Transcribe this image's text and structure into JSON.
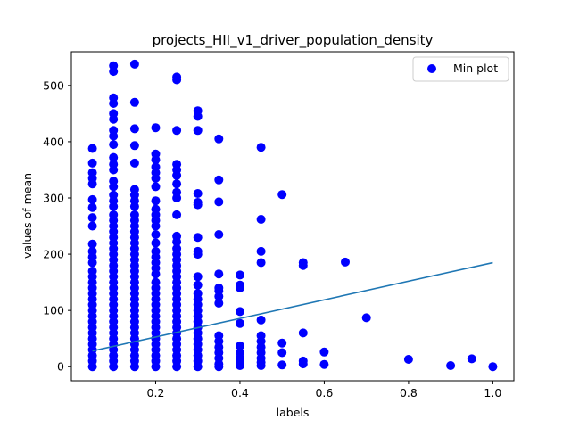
{
  "chart_data": {
    "type": "scatter",
    "title": "projects_HII_v1_driver_population_density",
    "xlabel": "labels",
    "ylabel": "values of mean",
    "xlim": [
      0.0,
      1.05
    ],
    "ylim": [
      -25,
      560
    ],
    "xticks": [
      "0.2",
      "0.4",
      "0.6",
      "0.8",
      "1.0"
    ],
    "xtick_values": [
      0.2,
      0.4,
      0.6,
      0.8,
      1.0
    ],
    "yticks": [
      "0",
      "100",
      "200",
      "300",
      "400",
      "500"
    ],
    "ytick_values": [
      0,
      100,
      200,
      300,
      400,
      500
    ],
    "grid": false,
    "legend": {
      "position": "top-right",
      "entries": [
        "Min plot"
      ]
    },
    "colors": {
      "points": "#0000ff",
      "line": "#1f77b4"
    },
    "series": [
      {
        "name": "Min plot",
        "type": "scatter",
        "points": [
          [
            0.05,
            388
          ],
          [
            0.05,
            362
          ],
          [
            0.05,
            345
          ],
          [
            0.05,
            335
          ],
          [
            0.05,
            325
          ],
          [
            0.05,
            297
          ],
          [
            0.05,
            283
          ],
          [
            0.05,
            265
          ],
          [
            0.05,
            250
          ],
          [
            0.05,
            218
          ],
          [
            0.05,
            205
          ],
          [
            0.05,
            195
          ],
          [
            0.05,
            185
          ],
          [
            0.05,
            170
          ],
          [
            0.05,
            160
          ],
          [
            0.05,
            150
          ],
          [
            0.05,
            140
          ],
          [
            0.05,
            130
          ],
          [
            0.05,
            120
          ],
          [
            0.05,
            110
          ],
          [
            0.05,
            100
          ],
          [
            0.05,
            90
          ],
          [
            0.05,
            80
          ],
          [
            0.05,
            70
          ],
          [
            0.05,
            60
          ],
          [
            0.05,
            50
          ],
          [
            0.05,
            40
          ],
          [
            0.05,
            30
          ],
          [
            0.05,
            20
          ],
          [
            0.05,
            10
          ],
          [
            0.05,
            0
          ],
          [
            0.1,
            535
          ],
          [
            0.1,
            525
          ],
          [
            0.1,
            478
          ],
          [
            0.1,
            468
          ],
          [
            0.1,
            450
          ],
          [
            0.1,
            440
          ],
          [
            0.1,
            420
          ],
          [
            0.1,
            410
          ],
          [
            0.1,
            395
          ],
          [
            0.1,
            372
          ],
          [
            0.1,
            360
          ],
          [
            0.1,
            350
          ],
          [
            0.1,
            330
          ],
          [
            0.1,
            320
          ],
          [
            0.1,
            305
          ],
          [
            0.1,
            295
          ],
          [
            0.1,
            285
          ],
          [
            0.1,
            270
          ],
          [
            0.1,
            260
          ],
          [
            0.1,
            250
          ],
          [
            0.1,
            240
          ],
          [
            0.1,
            230
          ],
          [
            0.1,
            220
          ],
          [
            0.1,
            210
          ],
          [
            0.1,
            200
          ],
          [
            0.1,
            190
          ],
          [
            0.1,
            180
          ],
          [
            0.1,
            170
          ],
          [
            0.1,
            160
          ],
          [
            0.1,
            150
          ],
          [
            0.1,
            140
          ],
          [
            0.1,
            130
          ],
          [
            0.1,
            120
          ],
          [
            0.1,
            110
          ],
          [
            0.1,
            100
          ],
          [
            0.1,
            90
          ],
          [
            0.1,
            80
          ],
          [
            0.1,
            70
          ],
          [
            0.1,
            60
          ],
          [
            0.1,
            50
          ],
          [
            0.1,
            40
          ],
          [
            0.1,
            30
          ],
          [
            0.1,
            20
          ],
          [
            0.1,
            10
          ],
          [
            0.1,
            0
          ],
          [
            0.15,
            538
          ],
          [
            0.15,
            470
          ],
          [
            0.15,
            423
          ],
          [
            0.15,
            393
          ],
          [
            0.15,
            362
          ],
          [
            0.15,
            315
          ],
          [
            0.15,
            305
          ],
          [
            0.15,
            295
          ],
          [
            0.15,
            285
          ],
          [
            0.15,
            270
          ],
          [
            0.15,
            260
          ],
          [
            0.15,
            250
          ],
          [
            0.15,
            240
          ],
          [
            0.15,
            230
          ],
          [
            0.15,
            220
          ],
          [
            0.15,
            210
          ],
          [
            0.15,
            200
          ],
          [
            0.15,
            190
          ],
          [
            0.15,
            180
          ],
          [
            0.15,
            170
          ],
          [
            0.15,
            160
          ],
          [
            0.15,
            150
          ],
          [
            0.15,
            140
          ],
          [
            0.15,
            130
          ],
          [
            0.15,
            120
          ],
          [
            0.15,
            110
          ],
          [
            0.15,
            100
          ],
          [
            0.15,
            90
          ],
          [
            0.15,
            80
          ],
          [
            0.15,
            70
          ],
          [
            0.15,
            60
          ],
          [
            0.15,
            50
          ],
          [
            0.15,
            40
          ],
          [
            0.15,
            30
          ],
          [
            0.15,
            20
          ],
          [
            0.15,
            10
          ],
          [
            0.15,
            0
          ],
          [
            0.2,
            425
          ],
          [
            0.2,
            378
          ],
          [
            0.2,
            368
          ],
          [
            0.2,
            355
          ],
          [
            0.2,
            345
          ],
          [
            0.2,
            335
          ],
          [
            0.2,
            320
          ],
          [
            0.2,
            295
          ],
          [
            0.2,
            280
          ],
          [
            0.2,
            270
          ],
          [
            0.2,
            260
          ],
          [
            0.2,
            250
          ],
          [
            0.2,
            235
          ],
          [
            0.2,
            220
          ],
          [
            0.2,
            205
          ],
          [
            0.2,
            195
          ],
          [
            0.2,
            185
          ],
          [
            0.2,
            175
          ],
          [
            0.2,
            165
          ],
          [
            0.2,
            150
          ],
          [
            0.2,
            140
          ],
          [
            0.2,
            130
          ],
          [
            0.2,
            120
          ],
          [
            0.2,
            110
          ],
          [
            0.2,
            100
          ],
          [
            0.2,
            90
          ],
          [
            0.2,
            80
          ],
          [
            0.2,
            70
          ],
          [
            0.2,
            60
          ],
          [
            0.2,
            50
          ],
          [
            0.2,
            40
          ],
          [
            0.2,
            30
          ],
          [
            0.2,
            20
          ],
          [
            0.2,
            10
          ],
          [
            0.2,
            0
          ],
          [
            0.25,
            515
          ],
          [
            0.25,
            510
          ],
          [
            0.25,
            420
          ],
          [
            0.25,
            360
          ],
          [
            0.25,
            350
          ],
          [
            0.25,
            340
          ],
          [
            0.25,
            325
          ],
          [
            0.25,
            310
          ],
          [
            0.25,
            300
          ],
          [
            0.25,
            270
          ],
          [
            0.25,
            232
          ],
          [
            0.25,
            222
          ],
          [
            0.25,
            210
          ],
          [
            0.25,
            200
          ],
          [
            0.25,
            190
          ],
          [
            0.25,
            180
          ],
          [
            0.25,
            170
          ],
          [
            0.25,
            160
          ],
          [
            0.25,
            150
          ],
          [
            0.25,
            140
          ],
          [
            0.25,
            130
          ],
          [
            0.25,
            120
          ],
          [
            0.25,
            110
          ],
          [
            0.25,
            100
          ],
          [
            0.25,
            90
          ],
          [
            0.25,
            80
          ],
          [
            0.25,
            70
          ],
          [
            0.25,
            60
          ],
          [
            0.25,
            50
          ],
          [
            0.25,
            40
          ],
          [
            0.25,
            30
          ],
          [
            0.25,
            20
          ],
          [
            0.25,
            10
          ],
          [
            0.25,
            0
          ],
          [
            0.3,
            455
          ],
          [
            0.3,
            445
          ],
          [
            0.3,
            420
          ],
          [
            0.3,
            308
          ],
          [
            0.3,
            292
          ],
          [
            0.3,
            288
          ],
          [
            0.3,
            230
          ],
          [
            0.3,
            205
          ],
          [
            0.3,
            200
          ],
          [
            0.3,
            160
          ],
          [
            0.3,
            145
          ],
          [
            0.3,
            130
          ],
          [
            0.3,
            120
          ],
          [
            0.3,
            110
          ],
          [
            0.3,
            100
          ],
          [
            0.3,
            90
          ],
          [
            0.3,
            80
          ],
          [
            0.3,
            70
          ],
          [
            0.3,
            60
          ],
          [
            0.3,
            50
          ],
          [
            0.3,
            40
          ],
          [
            0.3,
            30
          ],
          [
            0.3,
            20
          ],
          [
            0.3,
            10
          ],
          [
            0.3,
            0
          ],
          [
            0.35,
            405
          ],
          [
            0.35,
            332
          ],
          [
            0.35,
            293
          ],
          [
            0.35,
            235
          ],
          [
            0.35,
            165
          ],
          [
            0.35,
            140
          ],
          [
            0.35,
            135
          ],
          [
            0.35,
            125
          ],
          [
            0.35,
            113
          ],
          [
            0.35,
            55
          ],
          [
            0.35,
            45
          ],
          [
            0.35,
            35
          ],
          [
            0.35,
            25
          ],
          [
            0.35,
            15
          ],
          [
            0.35,
            5
          ],
          [
            0.35,
            0
          ],
          [
            0.4,
            163
          ],
          [
            0.4,
            145
          ],
          [
            0.4,
            140
          ],
          [
            0.4,
            98
          ],
          [
            0.4,
            77
          ],
          [
            0.4,
            37
          ],
          [
            0.4,
            25
          ],
          [
            0.4,
            15
          ],
          [
            0.4,
            8
          ],
          [
            0.4,
            2
          ],
          [
            0.45,
            390
          ],
          [
            0.45,
            262
          ],
          [
            0.45,
            205
          ],
          [
            0.45,
            185
          ],
          [
            0.45,
            83
          ],
          [
            0.45,
            55
          ],
          [
            0.45,
            45
          ],
          [
            0.45,
            35
          ],
          [
            0.45,
            25
          ],
          [
            0.45,
            15
          ],
          [
            0.45,
            8
          ],
          [
            0.45,
            2
          ],
          [
            0.5,
            306
          ],
          [
            0.5,
            42
          ],
          [
            0.5,
            25
          ],
          [
            0.5,
            3
          ],
          [
            0.55,
            185
          ],
          [
            0.55,
            180
          ],
          [
            0.55,
            60
          ],
          [
            0.55,
            10
          ],
          [
            0.55,
            5
          ],
          [
            0.6,
            26
          ],
          [
            0.6,
            4
          ],
          [
            0.65,
            186
          ],
          [
            0.7,
            87
          ],
          [
            0.8,
            13
          ],
          [
            0.9,
            2
          ],
          [
            0.95,
            14
          ],
          [
            1.0,
            0
          ]
        ]
      },
      {
        "name": "",
        "type": "line",
        "x": [
          0.05,
          1.0
        ],
        "y": [
          28,
          185
        ]
      }
    ]
  }
}
